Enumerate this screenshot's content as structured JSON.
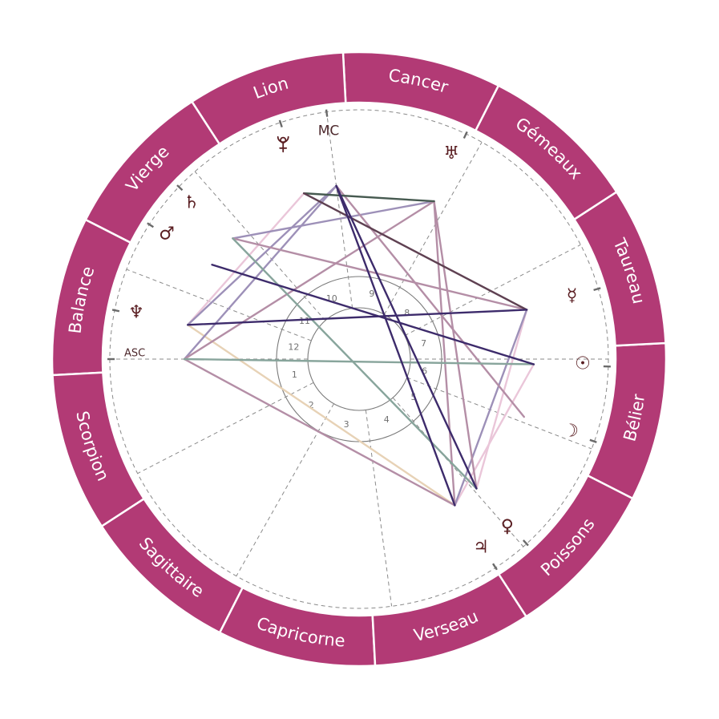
{
  "wheel": {
    "ring_color": "#b23a75",
    "ring_divider_color": "#ffffff",
    "grid_color": "#8a8a8a",
    "glyph_color": "#5a1e22",
    "angle_label_color": "#4e2a2e",
    "signs": [
      {
        "key": "aries",
        "name": "Bélier",
        "angle": 348
      },
      {
        "key": "taurus",
        "name": "Taureau",
        "angle": 18
      },
      {
        "key": "gemini",
        "name": "Gémeaux",
        "angle": 48
      },
      {
        "key": "cancer",
        "name": "Cancer",
        "angle": 78
      },
      {
        "key": "leo",
        "name": "Lion",
        "angle": 108
      },
      {
        "key": "virgo",
        "name": "Vierge",
        "angle": 138
      },
      {
        "key": "libra",
        "name": "Balance",
        "angle": 168
      },
      {
        "key": "scorpio",
        "name": "Scorpion",
        "angle": 198
      },
      {
        "key": "sagittarius",
        "name": "Sagittaire",
        "angle": 228
      },
      {
        "key": "capricorn",
        "name": "Capricorne",
        "angle": 258
      },
      {
        "key": "aquarius",
        "name": "Verseau",
        "angle": 288
      },
      {
        "key": "pisces",
        "name": "Poissons",
        "angle": 318
      }
    ],
    "houses": [
      {
        "number": "1",
        "cusp": 180
      },
      {
        "number": "2",
        "cusp": 207.3
      },
      {
        "number": "3",
        "cusp": 240.5
      },
      {
        "number": "4",
        "cusp": 277.5
      },
      {
        "number": "5",
        "cusp": 311.2
      },
      {
        "number": "6",
        "cusp": 338.9
      },
      {
        "number": "7",
        "cusp": 0
      },
      {
        "number": "8",
        "cusp": 27.3
      },
      {
        "number": "9",
        "cusp": 60.5
      },
      {
        "number": "10",
        "cusp": 97.5
      },
      {
        "number": "11",
        "cusp": 131.2
      },
      {
        "number": "12",
        "cusp": 158.9
      }
    ],
    "angles": [
      {
        "key": "asc",
        "label": "ASC",
        "angle": 180,
        "label_angle": 178.6,
        "label_radius": 280,
        "font_size": 13
      },
      {
        "key": "mc",
        "label": "MC",
        "angle": 97.5,
        "label_angle": 97.6,
        "label_radius": 287,
        "font_size": 17
      }
    ],
    "planets": [
      {
        "key": "sun",
        "glyph": "☉",
        "icon": "sun-icon",
        "angle": -1.7,
        "glyph_angle": -1.2,
        "glyph_radius": 279
      },
      {
        "key": "moon",
        "glyph": "☽",
        "icon": "moon-icon",
        "angle": -19.3,
        "glyph_angle": -18.8,
        "glyph_radius": 279
      },
      {
        "key": "mercury",
        "glyph": "☿",
        "icon": "mercury-icon",
        "angle": 16.4,
        "glyph_angle": 16.6,
        "glyph_radius": 277
      },
      {
        "key": "venus",
        "glyph": "♀",
        "icon": "venus-icon",
        "angle": -47.8,
        "glyph_angle": -48.5,
        "glyph_radius": 279
      },
      {
        "key": "mars",
        "glyph": "♂",
        "icon": "mars-icon",
        "angle": 147.3,
        "glyph_angle": 147.0,
        "glyph_radius": 286
      },
      {
        "key": "jupiter",
        "glyph": "♃",
        "icon": "jupiter-icon",
        "angle": -56.8,
        "glyph_angle": -57.1,
        "glyph_radius": 280
      },
      {
        "key": "saturn",
        "glyph": "♄",
        "icon": "saturn-icon",
        "angle": 136.3,
        "glyph_angle": 137.0,
        "glyph_radius": 286
      },
      {
        "key": "uranus",
        "glyph": "♅",
        "icon": "uranus-icon",
        "angle": 64.6,
        "glyph_angle": 65.8,
        "glyph_radius": 281
      },
      {
        "key": "neptune",
        "glyph": "♆",
        "icon": "neptune-icon",
        "angle": 168.7,
        "glyph_angle": 168.2,
        "glyph_radius": 284
      },
      {
        "key": "pluto",
        "glyph": "⯓",
        "icon": "pluto-icon",
        "angle": 108.4,
        "glyph_angle": 109.5,
        "glyph_radius": 284
      }
    ],
    "aspect_colors": {
      "pink": "#eac6d9",
      "beige": "#e7d2b6",
      "lavender": "#9d90b8",
      "mauve": "#b48ea6",
      "teal": "#88a59c",
      "dark_green": "#465a50",
      "plum": "#5f4152",
      "dark_purple": "#3d2b6b"
    },
    "aspects": [
      {
        "from": "pluto",
        "to": "neptune",
        "color": "pink"
      },
      {
        "from": "mercury",
        "to": "venus",
        "color": "pink"
      },
      {
        "from": "sun",
        "to": "jupiter",
        "color": "pink"
      },
      {
        "from": "neptune",
        "to": "jupiter",
        "color": "beige"
      },
      {
        "from": "mc",
        "to": "neptune",
        "color": "lavender"
      },
      {
        "from": "mc",
        "to": "asc",
        "color": "lavender"
      },
      {
        "from": "uranus",
        "to": "saturn",
        "color": "lavender"
      },
      {
        "from": "mercury",
        "to": "jupiter",
        "color": "lavender"
      },
      {
        "from": "mc",
        "to": "moon",
        "color": "mauve"
      },
      {
        "from": "uranus",
        "to": "asc",
        "color": "mauve"
      },
      {
        "from": "uranus",
        "to": "jupiter",
        "color": "mauve"
      },
      {
        "from": "uranus",
        "to": "venus",
        "color": "mauve"
      },
      {
        "from": "saturn",
        "to": "mercury",
        "color": "mauve"
      },
      {
        "from": "asc",
        "to": "jupiter",
        "color": "mauve"
      },
      {
        "from": "saturn",
        "to": "venus",
        "color": "teal"
      },
      {
        "from": "asc",
        "to": "sun",
        "color": "teal"
      },
      {
        "from": "pluto",
        "to": "uranus",
        "color": "dark_green"
      },
      {
        "from": "pluto",
        "to": "mercury",
        "color": "plum"
      },
      {
        "from": "mc",
        "to": "jupiter",
        "color": "dark_purple"
      },
      {
        "from": "mc",
        "to": "venus",
        "color": "dark_purple"
      },
      {
        "from": "mars",
        "to": "sun",
        "color": "dark_purple"
      },
      {
        "from": "neptune",
        "to": "mercury",
        "color": "dark_purple"
      }
    ]
  }
}
